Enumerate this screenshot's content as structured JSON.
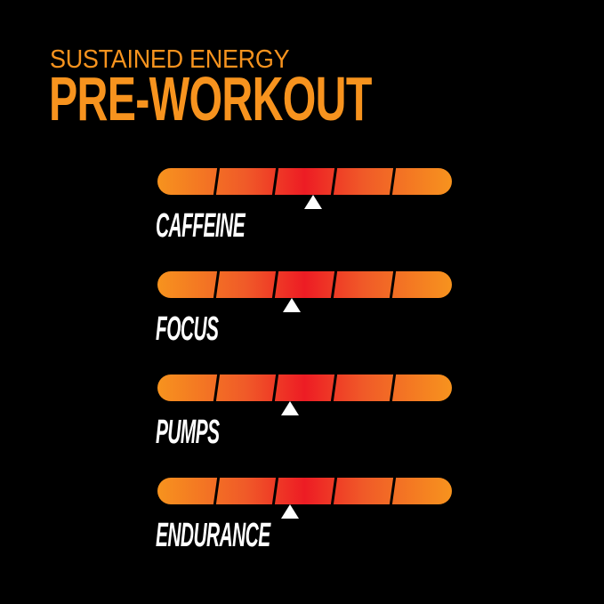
{
  "header": {
    "subtitle": "SUSTAINED ENERGY",
    "title": "PRE-WORKOUT"
  },
  "colors": {
    "accent": "#f7931e",
    "scale_center": "#ed1c24",
    "marker": "#ffffff",
    "background": "#000000"
  },
  "meters": [
    {
      "label": "CAFFEINE",
      "level": 0.53
    },
    {
      "label": "FOCUS",
      "level": 0.455
    },
    {
      "label": "PUMPS",
      "level": 0.45
    },
    {
      "label": "ENDURANCE",
      "level": 0.45
    }
  ],
  "segments": 5
}
